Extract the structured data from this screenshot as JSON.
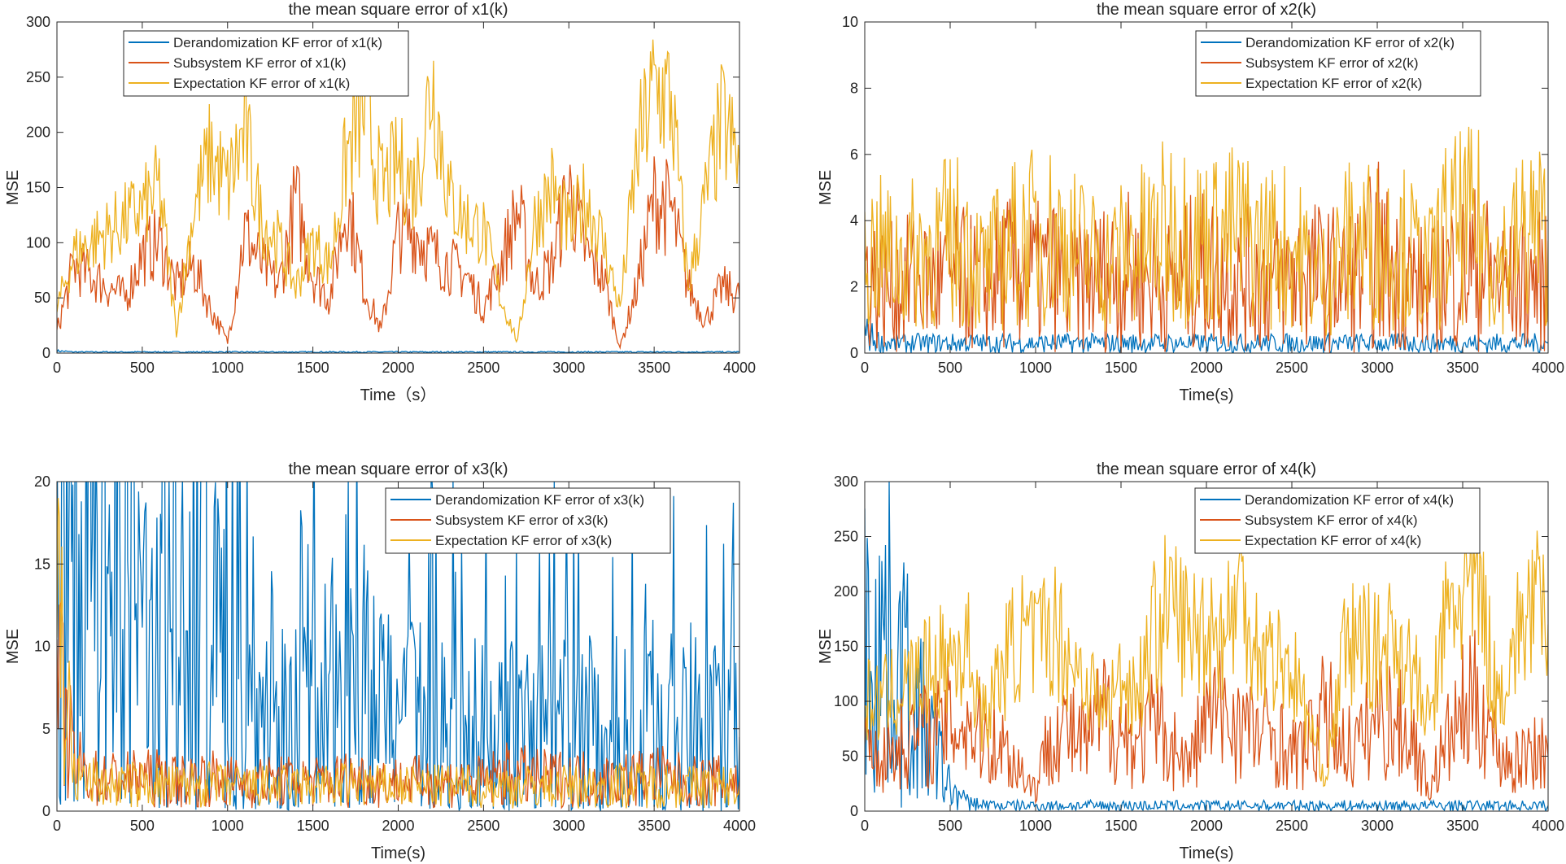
{
  "colors": {
    "derandomization": "#0072BD",
    "subsystem": "#D95319",
    "expectation": "#EDB120"
  },
  "chart_data": [
    {
      "type": "line",
      "title": "the mean square error of x1(k)",
      "xlabel": "Time（s）",
      "ylabel": "MSE",
      "xlim": [
        0,
        4000
      ],
      "ylim": [
        0,
        300
      ],
      "xticks": [
        0,
        500,
        1000,
        1500,
        2000,
        2500,
        3000,
        3500,
        4000
      ],
      "yticks": [
        0,
        50,
        100,
        150,
        200,
        250,
        300
      ],
      "grid": false,
      "legend_position": "top-left",
      "x": [
        0,
        100,
        200,
        300,
        400,
        500,
        600,
        700,
        800,
        900,
        1000,
        1100,
        1200,
        1300,
        1400,
        1500,
        1600,
        1700,
        1800,
        1900,
        2000,
        2100,
        2200,
        2300,
        2400,
        2500,
        2600,
        2700,
        2800,
        2900,
        3000,
        3100,
        3200,
        3300,
        3400,
        3500,
        3600,
        3700,
        3800,
        3900,
        4000
      ],
      "series": [
        {
          "name": "Derandomization KF error of x1(k)",
          "values": [
            2,
            1,
            1,
            1,
            1,
            1,
            1,
            1,
            1,
            1,
            1,
            1,
            1,
            1,
            1,
            1,
            1,
            1,
            1,
            1,
            1,
            1,
            1,
            1,
            1,
            1,
            1,
            1,
            1,
            1,
            1,
            1,
            1,
            1,
            1,
            1,
            1,
            1,
            1,
            1,
            1
          ]
        },
        {
          "name": "Subsystem KF error of x1(k)",
          "values": [
            20,
            80,
            70,
            60,
            50,
            90,
            100,
            60,
            80,
            40,
            10,
            110,
            80,
            60,
            140,
            70,
            50,
            140,
            60,
            20,
            110,
            110,
            90,
            80,
            70,
            40,
            80,
            130,
            60,
            80,
            150,
            90,
            70,
            5,
            60,
            140,
            130,
            60,
            30,
            60,
            50
          ]
        },
        {
          "name": "Expectation KF error of x1(k)",
          "values": [
            40,
            90,
            100,
            110,
            120,
            130,
            150,
            20,
            130,
            180,
            150,
            200,
            120,
            100,
            60,
            100,
            80,
            180,
            220,
            150,
            170,
            150,
            250,
            140,
            120,
            110,
            50,
            10,
            120,
            150,
            110,
            140,
            100,
            40,
            180,
            240,
            230,
            60,
            140,
            210,
            170
          ]
        }
      ]
    },
    {
      "type": "line",
      "title": "the mean square error of x2(k)",
      "xlabel": "Time(s)",
      "ylabel": "MSE",
      "xlim": [
        0,
        4000
      ],
      "ylim": [
        0,
        10
      ],
      "xticks": [
        0,
        500,
        1000,
        1500,
        2000,
        2500,
        3000,
        3500,
        4000
      ],
      "yticks": [
        0,
        2,
        4,
        6,
        8,
        10
      ],
      "grid": false,
      "legend_position": "top-right",
      "x": [
        0,
        100,
        200,
        300,
        400,
        500,
        600,
        700,
        800,
        900,
        1000,
        1100,
        1200,
        1300,
        1400,
        1500,
        1600,
        1700,
        1800,
        1900,
        2000,
        2100,
        2200,
        2300,
        2400,
        2500,
        2600,
        2700,
        2800,
        2900,
        3000,
        3100,
        3200,
        3300,
        3400,
        3500,
        3600,
        3700,
        3800,
        3900,
        4000
      ],
      "series": [
        {
          "name": "Derandomization KF error of x2(k)",
          "values": [
            0.6,
            0.3,
            0.3,
            0.3,
            0.3,
            0.3,
            0.3,
            0.3,
            0.3,
            0.3,
            0.3,
            0.3,
            0.3,
            0.3,
            0.3,
            0.3,
            0.3,
            0.3,
            0.3,
            0.3,
            0.3,
            0.3,
            0.3,
            0.3,
            0.3,
            0.3,
            0.3,
            0.3,
            0.3,
            0.3,
            0.3,
            0.3,
            0.3,
            0.3,
            0.3,
            0.3,
            0.3,
            0.3,
            0.3,
            0.3,
            0.3
          ]
        },
        {
          "name": "Subsystem KF error of x2(k)",
          "values": [
            2.5,
            2,
            2,
            2.2,
            2,
            2.3,
            2.2,
            2,
            2.4,
            2.5,
            2.3,
            2.4,
            2,
            2.2,
            2.3,
            2.5,
            2.4,
            2.2,
            2,
            2.4,
            2.5,
            2.4,
            2.3,
            2.2,
            2.1,
            2.3,
            2.4,
            2.3,
            2.2,
            2.4,
            3,
            2.3,
            2.2,
            1.8,
            2.4,
            2.5,
            2.6,
            2.2,
            2,
            2.2,
            2.1
          ]
        },
        {
          "name": "Expectation KF error of x2(k)",
          "values": [
            3,
            3,
            2.8,
            3,
            3.2,
            3.4,
            3.3,
            2.4,
            3,
            3.4,
            3.5,
            3.6,
            3.2,
            3,
            2.6,
            3,
            3.2,
            3.4,
            3.8,
            3.6,
            3.4,
            3.5,
            3.6,
            3.2,
            3.3,
            3.2,
            2.6,
            2.2,
            3.2,
            3.4,
            3.3,
            3.4,
            3,
            2.4,
            3.6,
            3.8,
            3.8,
            2.6,
            3.2,
            3.8,
            3.4
          ]
        }
      ]
    },
    {
      "type": "line",
      "title": "the mean square error of x3(k)",
      "xlabel": "Time(s)",
      "ylabel": "MSE",
      "xlim": [
        0,
        4000
      ],
      "ylim": [
        0,
        20
      ],
      "xticks": [
        0,
        500,
        1000,
        1500,
        2000,
        2500,
        3000,
        3500,
        4000
      ],
      "yticks": [
        0,
        5,
        10,
        15,
        20
      ],
      "grid": false,
      "legend_position": "top-right",
      "x": [
        0,
        100,
        200,
        300,
        400,
        500,
        600,
        700,
        800,
        900,
        1000,
        1100,
        1200,
        1300,
        1400,
        1500,
        1600,
        1700,
        1800,
        1900,
        2000,
        2100,
        2200,
        2300,
        2400,
        2500,
        2600,
        2700,
        2800,
        2900,
        3000,
        3100,
        3200,
        3300,
        3400,
        3500,
        3600,
        3700,
        3800,
        3900,
        4000
      ],
      "series": [
        {
          "name": "Derandomization KF error of x3(k)",
          "values": [
            12,
            14,
            12,
            10,
            12,
            9,
            8,
            7,
            12,
            12,
            7,
            6,
            6,
            5.5,
            5,
            6,
            6,
            9,
            7,
            5,
            5,
            5,
            5,
            4.5,
            4.5,
            4.5,
            4.5,
            4.5,
            4.5,
            4.5,
            4.5,
            4.5,
            4.5,
            4.5,
            4.5,
            5,
            4.5,
            4.5,
            4.5,
            4,
            4.5
          ]
        },
        {
          "name": "Subsystem KF error of x3(k)",
          "values": [
            8,
            3,
            2,
            2,
            2,
            2,
            2,
            1.8,
            2,
            2,
            1.8,
            1.8,
            1.8,
            1.8,
            1.8,
            1.8,
            1.8,
            2,
            2,
            1.8,
            1.8,
            1.8,
            1.8,
            1.8,
            1.8,
            1.8,
            2.2,
            2.2,
            2,
            2,
            2,
            2,
            1.8,
            2,
            2,
            2.2,
            2,
            1.8,
            1.8,
            1.8,
            1.8
          ]
        },
        {
          "name": "Expectation KF error of x3(k)",
          "values": [
            14,
            2,
            1.8,
            1.6,
            1.6,
            1.6,
            1.6,
            1.5,
            1.6,
            1.6,
            1.5,
            1.5,
            1.5,
            1.5,
            1.5,
            1.5,
            1.5,
            1.6,
            1.6,
            1.5,
            1.5,
            1.5,
            1.5,
            1.5,
            1.5,
            1.5,
            1.5,
            1.5,
            1.5,
            1.5,
            1.5,
            1.5,
            1.5,
            1.6,
            1.6,
            1.6,
            1.6,
            1.5,
            1.5,
            1.5,
            1.5
          ]
        }
      ]
    },
    {
      "type": "line",
      "title": "the mean square error of x4(k)",
      "xlabel": "Time(s)",
      "ylabel": "MSE",
      "xlim": [
        0,
        4000
      ],
      "ylim": [
        0,
        300
      ],
      "xticks": [
        0,
        500,
        1000,
        1500,
        2000,
        2500,
        3000,
        3500,
        4000
      ],
      "yticks": [
        0,
        50,
        100,
        150,
        200,
        250,
        300
      ],
      "grid": false,
      "legend_position": "top-right",
      "x": [
        0,
        100,
        200,
        300,
        400,
        500,
        600,
        700,
        800,
        900,
        1000,
        1100,
        1200,
        1300,
        1400,
        1500,
        1600,
        1700,
        1800,
        1900,
        2000,
        2100,
        2200,
        2300,
        2400,
        2500,
        2600,
        2700,
        2800,
        2900,
        3000,
        3100,
        3200,
        3300,
        3400,
        3500,
        3600,
        3700,
        3800,
        3900,
        4000
      ],
      "series": [
        {
          "name": "Derandomization KF error of x4(k)",
          "values": [
            150,
            160,
            140,
            90,
            60,
            20,
            8,
            6,
            5,
            5,
            5,
            5,
            5,
            5,
            5,
            5,
            5,
            5,
            5,
            5,
            5,
            5,
            5,
            5,
            5,
            5,
            5,
            5,
            5,
            5,
            5,
            5,
            5,
            5,
            5,
            5,
            5,
            5,
            5,
            5,
            5
          ]
        },
        {
          "name": "Subsystem KF error of x4(k)",
          "values": [
            60,
            50,
            60,
            70,
            70,
            80,
            80,
            70,
            60,
            40,
            20,
            80,
            70,
            60,
            90,
            70,
            60,
            80,
            60,
            40,
            90,
            90,
            80,
            70,
            70,
            50,
            60,
            90,
            60,
            60,
            90,
            80,
            70,
            20,
            60,
            90,
            100,
            60,
            40,
            60,
            50
          ]
        },
        {
          "name": "Expectation KF error of x4(k)",
          "values": [
            100,
            100,
            110,
            120,
            130,
            140,
            150,
            80,
            130,
            160,
            150,
            170,
            140,
            120,
            90,
            120,
            110,
            170,
            190,
            160,
            170,
            160,
            200,
            150,
            140,
            130,
            80,
            30,
            140,
            160,
            140,
            160,
            130,
            80,
            170,
            200,
            200,
            100,
            150,
            190,
            170
          ]
        }
      ]
    }
  ]
}
